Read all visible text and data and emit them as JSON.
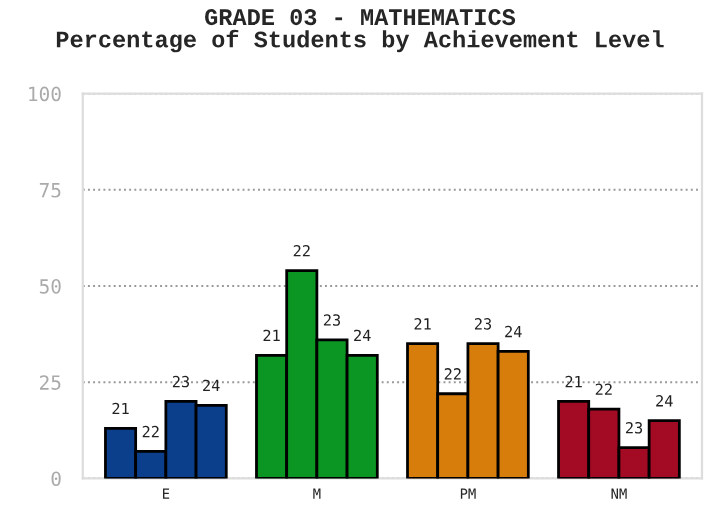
{
  "chart_data": {
    "type": "bar",
    "title": "GRADE 03 - MATHEMATICS\nPercentage of Students by Achievement Level",
    "categories": [
      "E",
      "M",
      "PM",
      "NM"
    ],
    "series": [
      {
        "name": "21",
        "colors": [
          "#0b3f8b",
          "#0b9523",
          "#d77d0b",
          "#a30a23"
        ],
        "values": [
          13,
          32,
          35,
          20
        ]
      },
      {
        "name": "22",
        "colors": [
          "#0b3f8b",
          "#0b9523",
          "#d77d0b",
          "#a30a23"
        ],
        "values": [
          7,
          54,
          22,
          18
        ]
      },
      {
        "name": "23",
        "colors": [
          "#0b3f8b",
          "#0b9523",
          "#d77d0b",
          "#a30a23"
        ],
        "values": [
          20,
          36,
          35,
          8
        ]
      },
      {
        "name": "24",
        "colors": [
          "#0b3f8b",
          "#0b9523",
          "#d77d0b",
          "#a30a23"
        ],
        "values": [
          19,
          32,
          33,
          15
        ]
      }
    ],
    "ylim": [
      0,
      100
    ],
    "yticks": [
      0,
      25,
      50,
      75,
      100
    ],
    "grid": "y",
    "legend": false
  }
}
